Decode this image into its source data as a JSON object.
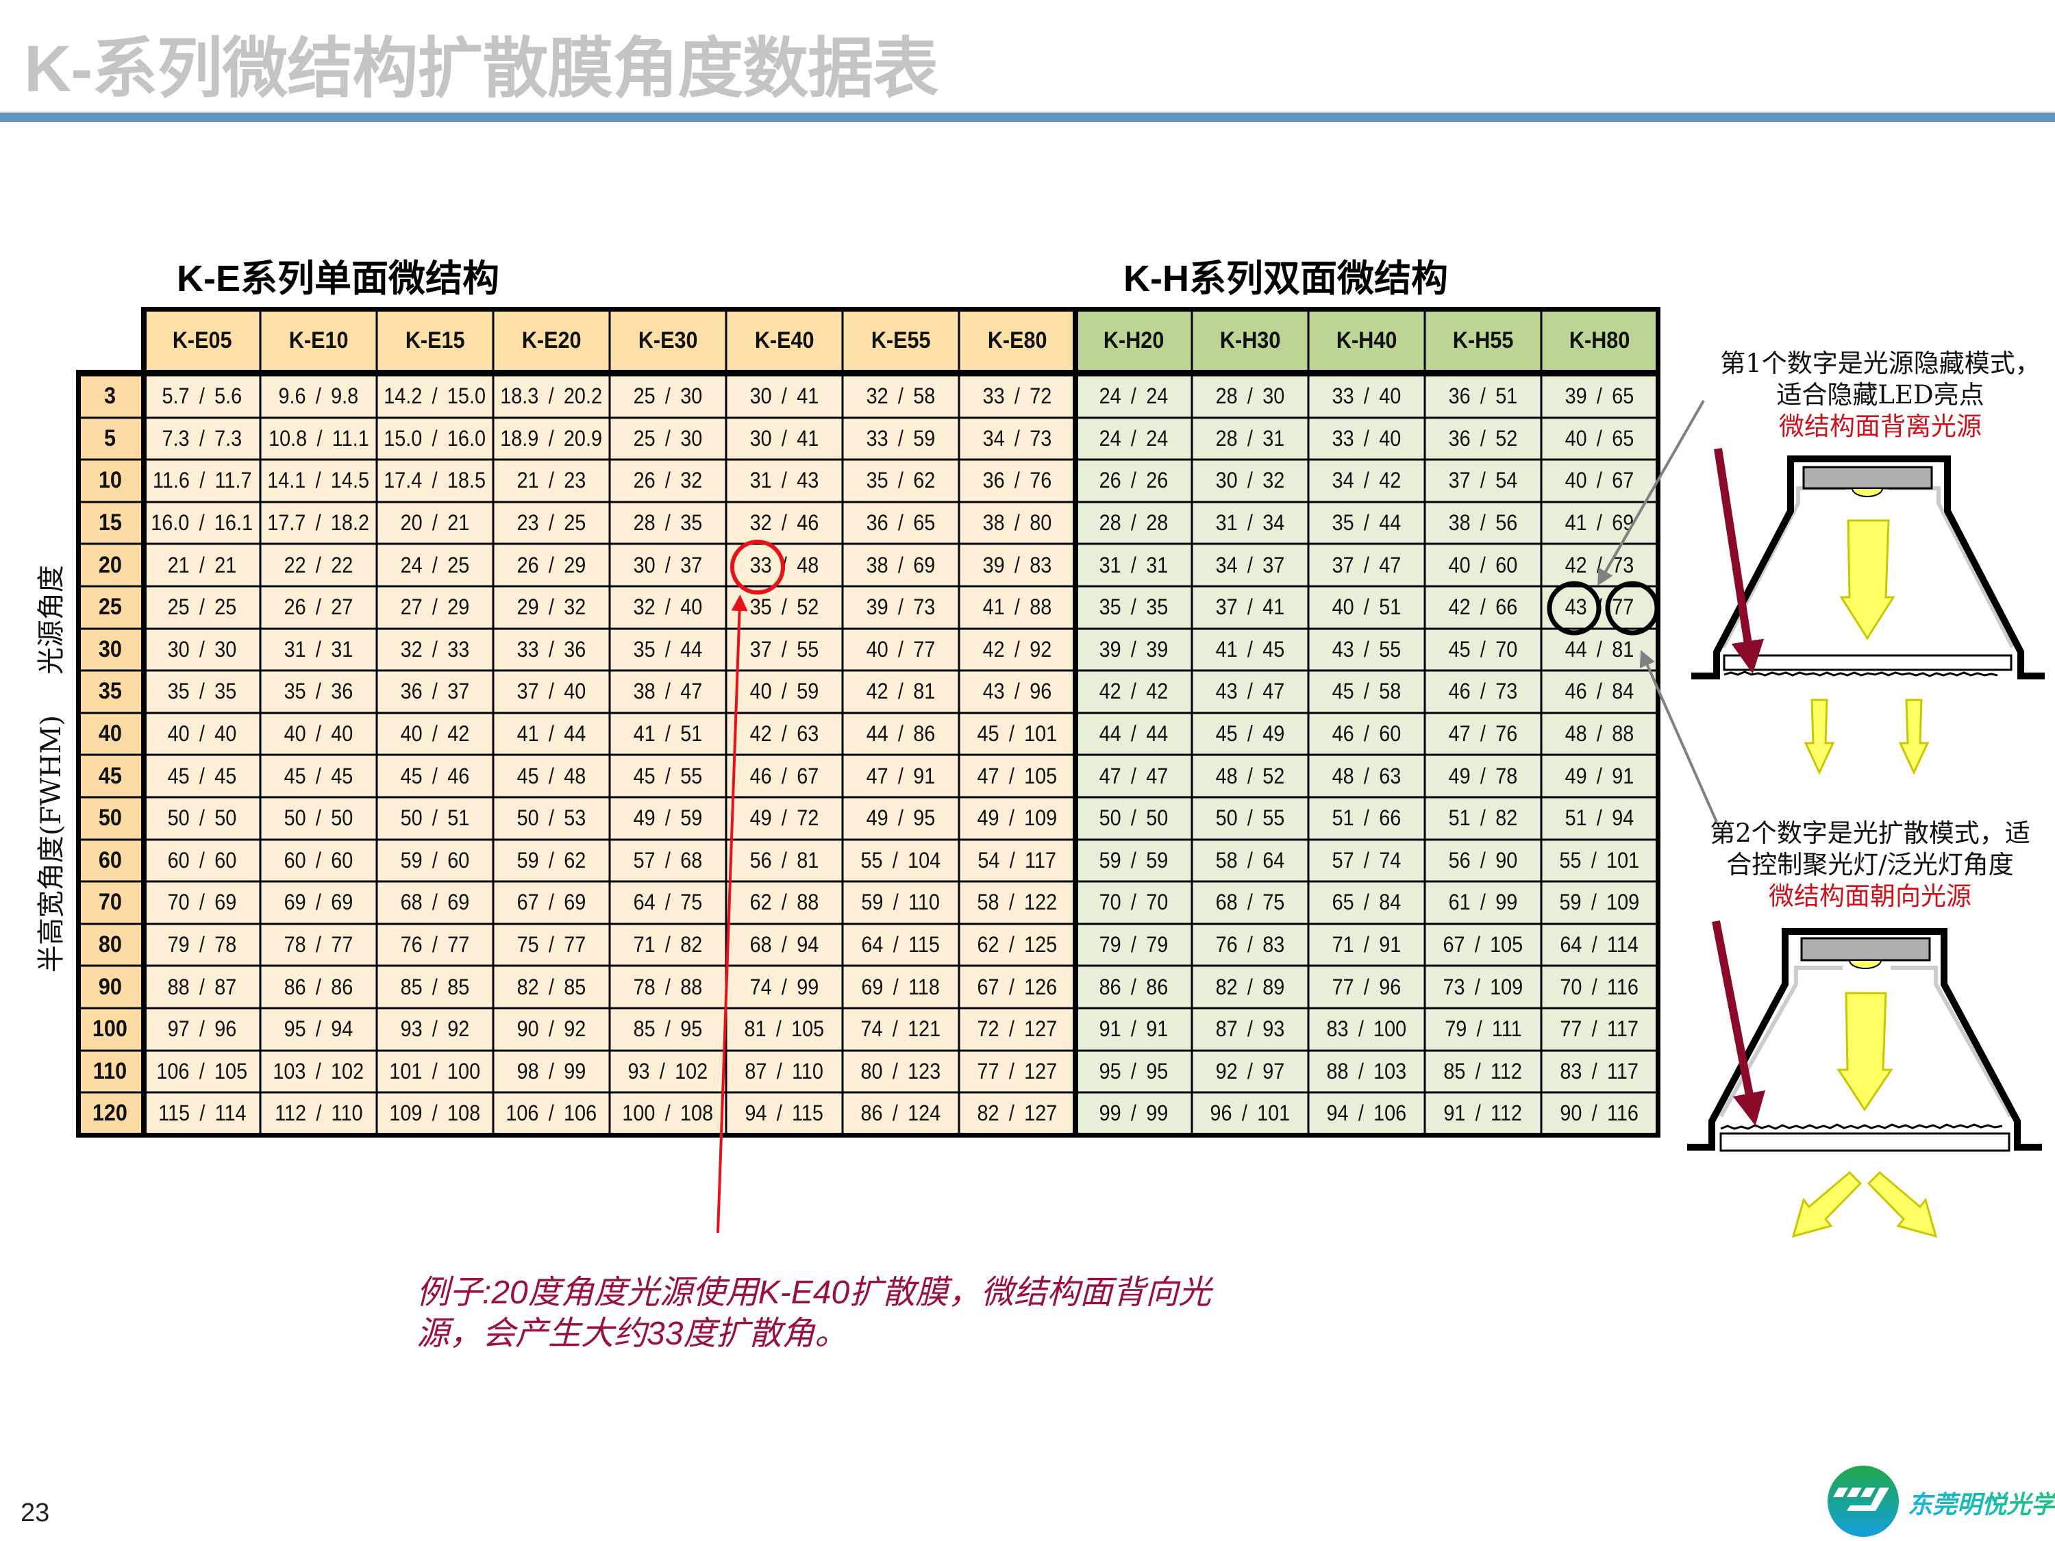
{
  "title": "K-系列微结构扩散膜角度数据表",
  "sections": {
    "e_series": "K-E系列单面微结构",
    "h_series": "K-H系列双面微结构"
  },
  "axis_labels": {
    "light_source_angle": "光源角度",
    "fwhm": "半高宽角度(FWHM)"
  },
  "colors": {
    "e_header": "#fde0a8",
    "e_cell": "#fdeed6",
    "h_header": "#bcd494",
    "h_cell": "#e6efd8",
    "row_label": "#fcdca4",
    "title_bar": "#6096c0",
    "highlight_red": "#e8101a",
    "example_text": "#9a1040"
  },
  "table": {
    "columns": [
      "K-E05",
      "K-E10",
      "K-E15",
      "K-E20",
      "K-E30",
      "K-E40",
      "K-E55",
      "K-E80",
      "K-H20",
      "K-H30",
      "K-H40",
      "K-H55",
      "K-H80"
    ],
    "rows": [
      {
        "angle": "3",
        "values": [
          "5.7 / 5.6",
          "9.6 / 9.8",
          "14.2 / 15.0",
          "18.3 / 20.2",
          "25 / 30",
          "30 / 41",
          "32 / 58",
          "33 / 72",
          "24 / 24",
          "28 / 30",
          "33 / 40",
          "36 / 51",
          "39 / 65"
        ]
      },
      {
        "angle": "5",
        "values": [
          "7.3 / 7.3",
          "10.8 / 11.1",
          "15.0 / 16.0",
          "18.9 / 20.9",
          "25 / 30",
          "30 / 41",
          "33 / 59",
          "34 / 73",
          "24 / 24",
          "28 / 31",
          "33 / 40",
          "36 / 52",
          "40 / 65"
        ]
      },
      {
        "angle": "10",
        "values": [
          "11.6 / 11.7",
          "14.1 / 14.5",
          "17.4 / 18.5",
          "21 / 23",
          "26 / 32",
          "31 / 43",
          "35 / 62",
          "36 / 76",
          "26 / 26",
          "30 / 32",
          "34 / 42",
          "37 / 54",
          "40 / 67"
        ]
      },
      {
        "angle": "15",
        "values": [
          "16.0 / 16.1",
          "17.7 / 18.2",
          "20 / 21",
          "23 / 25",
          "28 / 35",
          "32 / 46",
          "36 / 65",
          "38 / 80",
          "28 / 28",
          "31 / 34",
          "35 / 44",
          "38 / 56",
          "41 / 69"
        ]
      },
      {
        "angle": "20",
        "values": [
          "21 / 21",
          "22 / 22",
          "24 / 25",
          "26 / 29",
          "30 / 37",
          "33 / 48",
          "38 / 69",
          "39 / 83",
          "31 / 31",
          "34 / 37",
          "37 / 47",
          "40 / 60",
          "42 / 73"
        ]
      },
      {
        "angle": "25",
        "values": [
          "25 / 25",
          "26 / 27",
          "27 / 29",
          "29 / 32",
          "32 / 40",
          "35 / 52",
          "39 / 73",
          "41 / 88",
          "35 / 35",
          "37 / 41",
          "40 / 51",
          "42 / 66",
          "43 / 77"
        ]
      },
      {
        "angle": "30",
        "values": [
          "30 / 30",
          "31 / 31",
          "32 / 33",
          "33 / 36",
          "35 / 44",
          "37 / 55",
          "40 / 77",
          "42 / 92",
          "39 / 39",
          "41 / 45",
          "43 / 55",
          "45 / 70",
          "44 / 81"
        ]
      },
      {
        "angle": "35",
        "values": [
          "35 / 35",
          "35 / 36",
          "36 / 37",
          "37 / 40",
          "38 / 47",
          "40 / 59",
          "42 / 81",
          "43 / 96",
          "42 / 42",
          "43 / 47",
          "45 / 58",
          "46 / 73",
          "46 / 84"
        ]
      },
      {
        "angle": "40",
        "values": [
          "40 / 40",
          "40 / 40",
          "40 / 42",
          "41 / 44",
          "41 / 51",
          "42 / 63",
          "44 / 86",
          "45 / 101",
          "44 / 44",
          "45 / 49",
          "46 / 60",
          "47 / 76",
          "48 / 88"
        ]
      },
      {
        "angle": "45",
        "values": [
          "45 / 45",
          "45 / 45",
          "45 / 46",
          "45 / 48",
          "45 / 55",
          "46 / 67",
          "47 / 91",
          "47 / 105",
          "47 / 47",
          "48 / 52",
          "48 / 63",
          "49 / 78",
          "49 / 91"
        ]
      },
      {
        "angle": "50",
        "values": [
          "50 / 50",
          "50 / 50",
          "50 / 51",
          "50 / 53",
          "49 / 59",
          "49 / 72",
          "49 / 95",
          "49 / 109",
          "50 / 50",
          "50 / 55",
          "51 / 66",
          "51 / 82",
          "51 / 94"
        ]
      },
      {
        "angle": "60",
        "values": [
          "60 / 60",
          "60 / 60",
          "59 / 60",
          "59 / 62",
          "57 / 68",
          "56 / 81",
          "55 / 104",
          "54 / 117",
          "59 / 59",
          "58 / 64",
          "57 / 74",
          "56 / 90",
          "55 / 101"
        ]
      },
      {
        "angle": "70",
        "values": [
          "70 / 69",
          "69 / 69",
          "68 / 69",
          "67 / 69",
          "64 / 75",
          "62 / 88",
          "59 / 110",
          "58 / 122",
          "70 / 70",
          "68 / 75",
          "65 / 84",
          "61 / 99",
          "59 / 109"
        ]
      },
      {
        "angle": "80",
        "values": [
          "79 / 78",
          "78 / 77",
          "76 / 77",
          "75 / 77",
          "71 / 82",
          "68 / 94",
          "64 / 115",
          "62 / 125",
          "79 / 79",
          "76 / 83",
          "71 / 91",
          "67 / 105",
          "64 / 114"
        ]
      },
      {
        "angle": "90",
        "values": [
          "88 / 87",
          "86 / 86",
          "85 / 85",
          "82 / 85",
          "78 / 88",
          "74 / 99",
          "69 / 118",
          "67 / 126",
          "86 / 86",
          "82 / 89",
          "77 / 96",
          "73 / 109",
          "70 / 116"
        ]
      },
      {
        "angle": "100",
        "values": [
          "97 / 96",
          "95 / 94",
          "93 / 92",
          "90 / 92",
          "85 / 95",
          "81 / 105",
          "74 / 121",
          "72 / 127",
          "91 / 91",
          "87 / 93",
          "83 / 100",
          "79 / 111",
          "77 / 117"
        ]
      },
      {
        "angle": "110",
        "values": [
          "106 / 105",
          "103 / 102",
          "101 / 100",
          "98 / 99",
          "93 / 102",
          "87 / 110",
          "80 / 123",
          "77 / 127",
          "95 / 95",
          "92 / 97",
          "88 / 103",
          "85 / 112",
          "83 / 117"
        ]
      },
      {
        "angle": "120",
        "values": [
          "115 / 114",
          "112 / 110",
          "109 / 108",
          "106 / 106",
          "100 / 108",
          "94 / 115",
          "86 / 124",
          "82 / 127",
          "99 / 99",
          "96 / 101",
          "94 / 106",
          "91 / 112",
          "90 / 116"
        ]
      }
    ]
  },
  "notes": {
    "first": {
      "line1": "第1个数字是光源隐藏模式，",
      "line2": "适合隐藏LED亮点",
      "highlight": "微结构面背离光源"
    },
    "second": {
      "line1": "第2个数字是光扩散模式，适",
      "line2": "合控制聚光灯/泛光灯角度",
      "highlight": "微结构面朝向光源"
    }
  },
  "example": {
    "line1": "例子:20度角度光源使用K-E40扩散膜，微结构面背向光",
    "line2": "源，会产生大约33度扩散角。"
  },
  "page_number": "23",
  "logo": {
    "text": "东莞明悦光学"
  }
}
